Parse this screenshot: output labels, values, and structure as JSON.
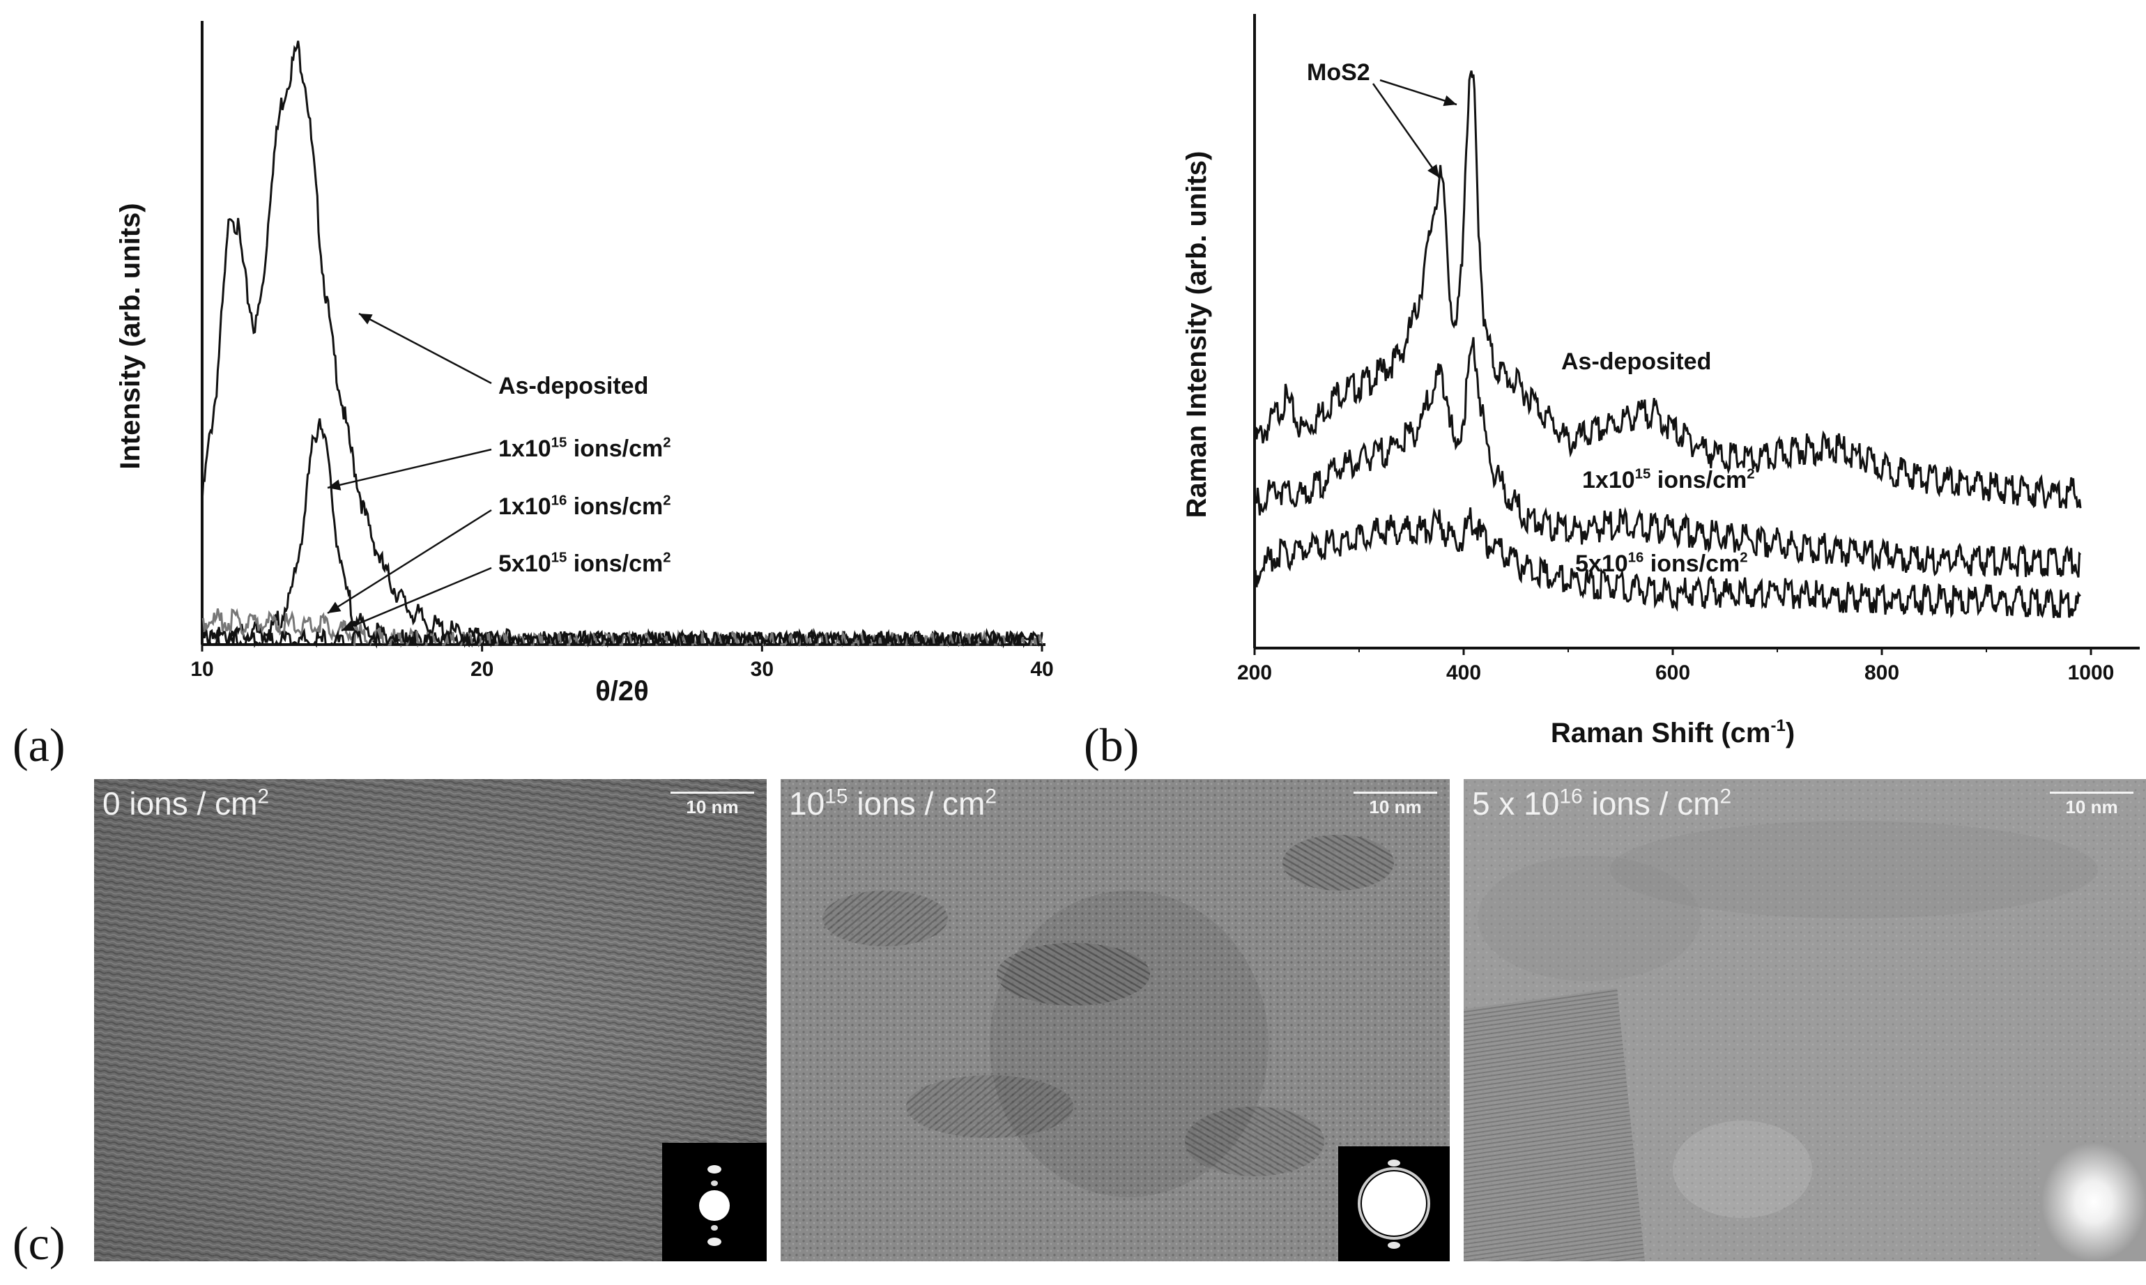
{
  "panel_labels": {
    "a": "(a)",
    "b": "(b)",
    "c": "(c)"
  },
  "chart_data": [
    {
      "type": "line",
      "panel": "a",
      "xlabel": "θ/2θ",
      "ylabel": "Intensity (arb. units)",
      "xlim": [
        10,
        40
      ],
      "xticks": [
        "10",
        "20",
        "30",
        "40"
      ],
      "yticks": "none",
      "grid": false,
      "series": [
        {
          "name": "As-deposited",
          "x": [
            10,
            10.2,
            10.5,
            10.8,
            11.0,
            11.3,
            11.6,
            11.9,
            12.2,
            12.5,
            12.8,
            13.1,
            13.4,
            13.7,
            14.0,
            14.3,
            14.7,
            15.2,
            15.8,
            16.5,
            17.3,
            18.2,
            19.2,
            20.5,
            25,
            30,
            35,
            40
          ],
          "y": [
            0.24,
            0.32,
            0.42,
            0.6,
            0.72,
            0.68,
            0.58,
            0.52,
            0.6,
            0.78,
            0.88,
            0.93,
            0.98,
            0.92,
            0.78,
            0.62,
            0.48,
            0.35,
            0.22,
            0.13,
            0.07,
            0.04,
            0.025,
            0.015,
            0.012,
            0.012,
            0.012,
            0.012
          ]
        },
        {
          "name": "1x10^15 ions/cm^2",
          "x": [
            10,
            12.5,
            13.2,
            13.6,
            13.9,
            14.2,
            14.4,
            14.7,
            15.0,
            15.4,
            15.9,
            17,
            20,
            30,
            40
          ],
          "y": [
            0.02,
            0.03,
            0.09,
            0.2,
            0.32,
            0.38,
            0.34,
            0.22,
            0.12,
            0.06,
            0.03,
            0.015,
            0.01,
            0.01,
            0.01
          ]
        },
        {
          "name": "1x10^16 ions/cm^2",
          "x": [
            10,
            12,
            13.5,
            14.2,
            15,
            16,
            18,
            20,
            30,
            40
          ],
          "y": [
            0.05,
            0.045,
            0.04,
            0.045,
            0.03,
            0.02,
            0.012,
            0.01,
            0.01,
            0.01
          ]
        },
        {
          "name": "5x10^15 ions/cm^2",
          "x": [
            10,
            12,
            14,
            16,
            18,
            20,
            30,
            40
          ],
          "y": [
            0.015,
            0.015,
            0.014,
            0.012,
            0.01,
            0.01,
            0.01,
            0.01
          ]
        }
      ],
      "annotations": [
        "As-deposited",
        "1x10^15 ions/cm^2",
        "1x10^16 ions/cm^2",
        "5x10^15 ions/cm^2"
      ]
    },
    {
      "type": "line",
      "panel": "b",
      "xlabel": "Raman Shift (cm^-1)",
      "ylabel": "Raman Intensity (arb. units)",
      "xlim": [
        200,
        1050
      ],
      "xticks": [
        "200",
        "400",
        "600",
        "800",
        "1000"
      ],
      "yticks": "none",
      "grid": false,
      "series": [
        {
          "name": "As-deposited",
          "x": [
            200,
            215,
            230,
            245,
            260,
            280,
            300,
            320,
            340,
            355,
            365,
            372,
            378,
            382,
            386,
            392,
            398,
            403,
            407,
            410,
            414,
            420,
            430,
            445,
            460,
            480,
            500,
            530,
            560,
            580,
            600,
            640,
            680,
            720,
            760,
            800,
            850,
            900,
            950,
            990
          ],
          "y": [
            0.34,
            0.37,
            0.41,
            0.36,
            0.38,
            0.42,
            0.43,
            0.45,
            0.48,
            0.55,
            0.64,
            0.72,
            0.76,
            0.72,
            0.6,
            0.5,
            0.62,
            0.84,
            0.93,
            0.9,
            0.7,
            0.52,
            0.46,
            0.44,
            0.42,
            0.38,
            0.34,
            0.36,
            0.38,
            0.39,
            0.36,
            0.32,
            0.31,
            0.33,
            0.33,
            0.3,
            0.28,
            0.27,
            0.26,
            0.26
          ]
        },
        {
          "name": "1x10^15 ions/cm^2",
          "x": [
            200,
            220,
            240,
            260,
            280,
            300,
            330,
            355,
            370,
            378,
            384,
            392,
            400,
            406,
            410,
            416,
            425,
            440,
            460,
            500,
            550,
            600,
            650,
            700,
            800,
            900,
            990
          ],
          "y": [
            0.24,
            0.27,
            0.25,
            0.27,
            0.3,
            0.31,
            0.33,
            0.36,
            0.42,
            0.45,
            0.42,
            0.32,
            0.38,
            0.47,
            0.5,
            0.4,
            0.31,
            0.26,
            0.22,
            0.2,
            0.21,
            0.2,
            0.19,
            0.18,
            0.16,
            0.15,
            0.15
          ]
        },
        {
          "name": "5x10^16 ions/cm^2",
          "x": [
            200,
            220,
            250,
            280,
            300,
            330,
            360,
            378,
            386,
            395,
            405,
            410,
            416,
            430,
            460,
            500,
            600,
            700,
            800,
            900,
            990
          ],
          "y": [
            0.13,
            0.16,
            0.17,
            0.18,
            0.19,
            0.2,
            0.2,
            0.21,
            0.19,
            0.18,
            0.21,
            0.22,
            0.19,
            0.17,
            0.14,
            0.12,
            0.1,
            0.1,
            0.09,
            0.09,
            0.08
          ]
        }
      ],
      "annotations": [
        "MoS2",
        "As-deposited",
        "1x10^15 ions/cm^2",
        "5x10^16 ions/cm^2"
      ]
    }
  ],
  "tem_images": [
    {
      "label_base": "0 ions / cm",
      "label_sup": "2",
      "scale": "10 nm"
    },
    {
      "label_base": "10",
      "label_sup": "15",
      "label_rest": " ions / cm",
      "label_sup2": "2",
      "scale": "10 nm"
    },
    {
      "label_base": "5 x 10",
      "label_sup": "16",
      "label_rest": " ions / cm",
      "label_sup2": "2",
      "scale": "10 nm"
    }
  ]
}
